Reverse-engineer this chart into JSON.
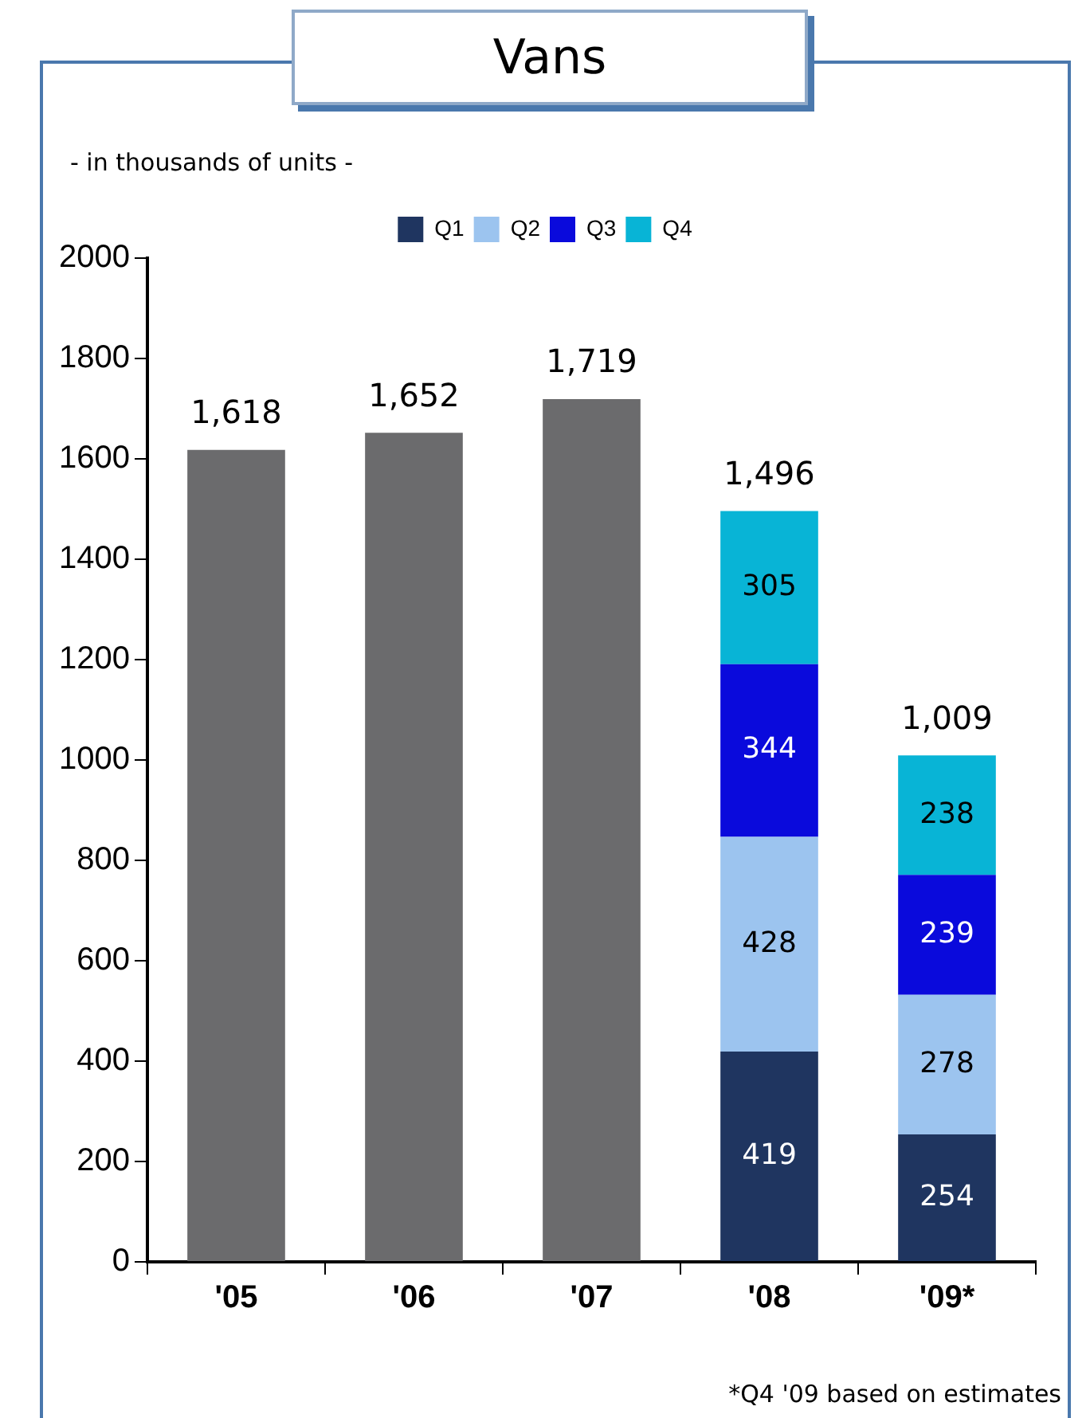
{
  "chart_data": {
    "type": "bar",
    "title": "Vans",
    "subtitle": "- in thousands of units -",
    "annotations": [
      "*Q4 '09 based on estimates"
    ],
    "categories": [
      "'05",
      "'06",
      "'07",
      "'08",
      "'09*"
    ],
    "stacked": true,
    "ylim": [
      0,
      2000
    ],
    "yticks": [
      0,
      200,
      400,
      600,
      800,
      1000,
      1200,
      1400,
      1600,
      1800,
      2000
    ],
    "legend": "top",
    "series": [
      {
        "color": "#6b6b6d",
        "values": [
          1618,
          1652,
          1719,
          null,
          null
        ]
      },
      {
        "name": "Q1",
        "color": "#1f3560",
        "values": [
          null,
          null,
          null,
          419,
          254
        ],
        "value_labels": [
          null,
          null,
          null,
          "419",
          "254"
        ]
      },
      {
        "name": "Q2",
        "color": "#9cc4ef",
        "values": [
          null,
          null,
          null,
          428,
          278
        ],
        "value_labels": [
          null,
          null,
          null,
          "428",
          "278"
        ]
      },
      {
        "name": "Q3",
        "color": "#0a0adc",
        "values": [
          null,
          null,
          null,
          344,
          239
        ],
        "value_labels": [
          null,
          null,
          null,
          "344",
          "239"
        ]
      },
      {
        "name": "Q4",
        "color": "#08b4d6",
        "values": [
          null,
          null,
          null,
          305,
          238
        ],
        "value_labels": [
          null,
          null,
          null,
          "305",
          "238"
        ]
      }
    ],
    "totals": [
      "1,618",
      "1,652",
      "1,719",
      "1,496",
      "1,009"
    ]
  }
}
